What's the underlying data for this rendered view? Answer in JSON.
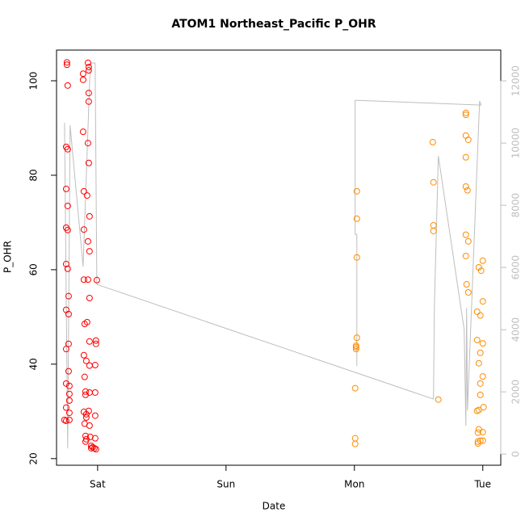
{
  "chart_data": {
    "type": "scatter",
    "title": "ATOM1 Northeast_Pacific P_OHR",
    "x_label": "Date",
    "y_label": "P_OHR",
    "xlim": [
      -0.32,
      3.14
    ],
    "xticks": [
      {
        "value": 0,
        "label": "Sat"
      },
      {
        "value": 1,
        "label": "Sun"
      },
      {
        "value": 2,
        "label": "Mon"
      },
      {
        "value": 3,
        "label": "Tue"
      }
    ],
    "ylim": [
      18.6,
      106.5
    ],
    "yticks": [
      20,
      40,
      60,
      80,
      100
    ],
    "y2lim": [
      -360,
      12990
    ],
    "y2ticks": [
      0,
      2000,
      4000,
      6000,
      8000,
      10000,
      12000
    ],
    "y2color": "#bebebe",
    "series": [
      {
        "style": "points",
        "color": "#ff0000",
        "x": [
          -0.239,
          -0.239,
          -0.233,
          -0.245,
          -0.233,
          -0.245,
          -0.233,
          -0.245,
          -0.233,
          -0.245,
          -0.233,
          -0.226,
          -0.245,
          -0.226,
          -0.226,
          -0.245,
          -0.226,
          -0.245,
          -0.22,
          -0.22,
          -0.22,
          -0.245,
          -0.22,
          -0.258,
          -0.245,
          -0.22,
          -0.075,
          -0.069,
          -0.069,
          -0.113,
          -0.113,
          -0.069,
          -0.069,
          -0.113,
          -0.075,
          -0.069,
          -0.107,
          -0.082,
          -0.063,
          -0.107,
          -0.075,
          -0.063,
          -0.107,
          -0.075,
          -0.063,
          -0.101,
          -0.082,
          -0.063,
          -0.107,
          -0.088,
          -0.063,
          -0.101,
          -0.094,
          -0.063,
          -0.094,
          -0.107,
          -0.088,
          -0.088,
          -0.069,
          -0.101,
          -0.063,
          -0.094,
          -0.088,
          -0.094,
          -0.057,
          -0.05,
          -0.038,
          -0.025,
          -0.013,
          -0.05,
          -0.006,
          -0.013,
          -0.013,
          -0.019,
          -0.019,
          -0.019,
          -0.019
        ],
        "values": [
          103.9,
          103.4,
          99.0,
          86.0,
          85.5,
          77.1,
          73.5,
          68.9,
          68.4,
          61.2,
          60.2,
          54.4,
          51.5,
          50.6,
          44.3,
          43.2,
          38.5,
          35.9,
          35.4,
          33.7,
          32.3,
          30.8,
          29.7,
          28.2,
          28.0,
          28.2,
          103.8,
          102.9,
          102.2,
          101.5,
          100.2,
          97.4,
          95.6,
          89.2,
          86.8,
          82.6,
          76.6,
          75.7,
          71.3,
          68.5,
          66.0,
          63.9,
          57.9,
          57.9,
          54.0,
          48.5,
          48.9,
          44.8,
          41.9,
          40.7,
          39.7,
          37.3,
          34.2,
          34.0,
          33.5,
          29.9,
          29.4,
          28.7,
          30.1,
          27.4,
          27.0,
          24.8,
          24.1,
          23.6,
          24.6,
          22.7,
          22.4,
          22.2,
          22.0,
          22.2,
          57.8,
          45.0,
          44.3,
          39.8,
          34.0,
          29.1,
          24.3
        ]
      },
      {
        "style": "points",
        "color": "#ff8c00",
        "x": [
          2.019,
          2.019,
          2.019,
          2.019,
          2.013,
          2.013,
          2.013,
          2.006,
          2.006,
          2.006,
          2.61,
          2.616,
          2.616,
          2.616,
          2.654,
          2.868,
          2.868,
          2.868,
          2.887,
          2.868,
          2.868,
          2.881,
          2.868,
          2.887,
          2.868,
          2.874,
          2.887,
          2.969,
          2.987,
          3.0,
          3.0,
          2.956,
          2.981,
          2.956,
          3.0,
          2.981,
          2.969,
          3.0,
          2.981,
          2.981,
          2.969,
          2.956,
          3.006,
          2.969,
          3.0,
          2.962,
          2.981,
          2.962,
          3.0,
          2.962
        ],
        "values": [
          76.6,
          70.8,
          62.6,
          45.6,
          43.9,
          43.2,
          43.6,
          34.9,
          24.3,
          23.1,
          87.0,
          78.5,
          69.4,
          68.2,
          32.5,
          93.2,
          92.8,
          88.4,
          87.5,
          83.8,
          77.6,
          76.8,
          67.4,
          66.0,
          62.9,
          56.9,
          55.2,
          60.5,
          59.8,
          61.9,
          53.3,
          51.1,
          50.3,
          45.1,
          44.4,
          42.4,
          40.2,
          37.4,
          35.9,
          33.5,
          30.3,
          30.1,
          30.9,
          26.2,
          25.6,
          25.5,
          23.8,
          23.6,
          23.8,
          23.2
        ]
      },
      {
        "style": "line",
        "axis": "y2",
        "color": "#bebebe",
        "x": [
          -0.258,
          -0.233,
          -0.214,
          -0.113,
          -0.057,
          -0.019,
          -0.006,
          2.616,
          2.623,
          2.654,
          2.855,
          2.868,
          2.874,
          2.881,
          2.975,
          2.987,
          2.006,
          2.006,
          2.019,
          2.019
        ],
        "values": [
          10649,
          182,
          10571,
          6026,
          12571,
          12571,
          5455,
          1766,
          4727,
          9584,
          4000,
          909,
          4701,
          1403,
          11351,
          11221,
          11377,
          7065,
          7065,
          2831
        ]
      }
    ]
  }
}
